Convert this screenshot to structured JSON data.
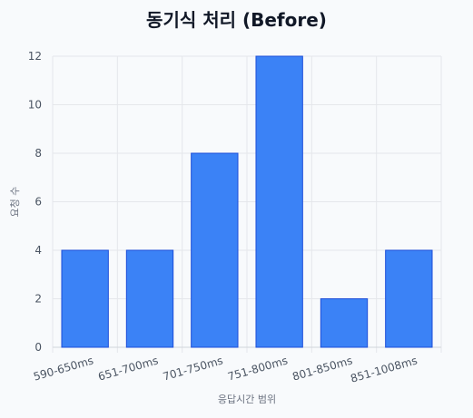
{
  "chart_data": {
    "type": "bar",
    "title": "동기식 처리 (Before)",
    "xlabel": "응답시간 범위",
    "ylabel": "요청 수",
    "categories": [
      "590-650ms",
      "651-700ms",
      "701-750ms",
      "751-800ms",
      "801-850ms",
      "851-1008ms"
    ],
    "values": [
      4,
      4,
      8,
      12,
      2,
      4
    ],
    "ylim": [
      0,
      12
    ],
    "yticks": [
      "0",
      "2",
      "4",
      "6",
      "8",
      "10",
      "12"
    ],
    "grid": true,
    "bar_color": "#3b82f6",
    "bar_border_color": "#1d4ed8"
  }
}
